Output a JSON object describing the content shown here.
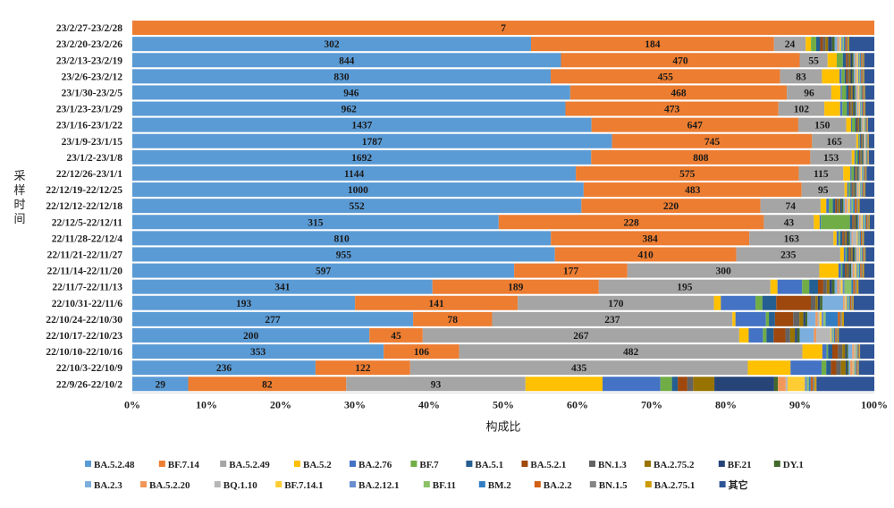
{
  "chart_data": {
    "type": "bar",
    "orientation": "horizontal",
    "stacked": true,
    "normalized": true,
    "title": "",
    "xlabel": "构成比",
    "ylabel": "采样时间",
    "xlim": [
      0,
      100
    ],
    "x_ticks": [
      "0%",
      "10%",
      "20%",
      "30%",
      "40%",
      "50%",
      "60%",
      "70%",
      "80%",
      "90%",
      "100%"
    ],
    "legend_position": "bottom",
    "grid": false,
    "categories": [
      "23/2/27-23/2/28",
      "23/2/20-23/2/26",
      "23/2/13-23/2/19",
      "23/2/6-23/2/12",
      "23/1/30-23/2/5",
      "23/1/23-23/1/29",
      "23/1/16-23/1/22",
      "23/1/9-23/1/15",
      "23/1/2-23/1/8",
      "22/12/26-23/1/1",
      "22/12/19-22/12/25",
      "22/12/12-22/12/18",
      "22/12/5-22/12/11",
      "22/11/28-22/12/4",
      "22/11/21-22/11/27",
      "22/11/14-22/11/20",
      "22/11/7-22/11/13",
      "22/10/31-22/11/6",
      "22/10/24-22/10/30",
      "22/10/17-22/10/23",
      "22/10/10-22/10/16",
      "22/10/3-22/10/9",
      "22/9/26-22/10/2"
    ],
    "series": [
      {
        "name": "BA.5.2.48",
        "color": "#5B9BD5",
        "values": [
          0,
          302,
          844,
          830,
          946,
          962,
          1437,
          1787,
          1692,
          1144,
          1000,
          552,
          315,
          810,
          955,
          597,
          341,
          193,
          277,
          200,
          353,
          236,
          29
        ]
      },
      {
        "name": "BF.7.14",
        "color": "#ED7D31",
        "values": [
          7,
          184,
          470,
          455,
          468,
          473,
          647,
          745,
          808,
          575,
          483,
          220,
          228,
          384,
          410,
          177,
          189,
          141,
          78,
          45,
          106,
          122,
          82
        ]
      },
      {
        "name": "BA.5.2.49",
        "color": "#A5A5A5",
        "values": [
          0,
          24,
          55,
          83,
          96,
          102,
          150,
          165,
          153,
          115,
          95,
          74,
          43,
          163,
          235,
          300,
          195,
          170,
          237,
          267,
          482,
          435,
          93
        ]
      },
      {
        "name": "BA.5.2",
        "color": "#FFC000",
        "values": [
          0,
          4,
          18,
          35,
          20,
          35,
          15,
          8,
          10,
          18,
          6,
          7,
          5,
          6,
          8,
          30,
          8,
          6,
          3,
          8,
          28,
          55,
          40
        ]
      },
      {
        "name": "BA.2.76",
        "color": "#4472C4",
        "values": [
          0,
          0,
          0,
          4,
          3,
          5,
          3,
          3,
          4,
          3,
          3,
          3,
          1,
          4,
          4,
          4,
          28,
          30,
          30,
          12,
          6,
          40,
          30
        ]
      },
      {
        "name": "BF.7",
        "color": "#70AD47",
        "values": [
          0,
          4,
          12,
          6,
          9,
          10,
          10,
          3,
          8,
          6,
          4,
          5,
          25,
          3,
          3,
          2,
          8,
          6,
          3,
          3,
          2,
          6,
          6
        ]
      },
      {
        "name": "BA.5.1",
        "color": "#255E91",
        "values": [
          0,
          3,
          6,
          3,
          5,
          5,
          4,
          3,
          5,
          3,
          3,
          3,
          2,
          4,
          4,
          4,
          10,
          12,
          6,
          6,
          6,
          6,
          3
        ]
      },
      {
        "name": "BA.5.2.1",
        "color": "#9E480E",
        "values": [
          0,
          2,
          3,
          3,
          3,
          3,
          3,
          2,
          3,
          2,
          2,
          2,
          1,
          3,
          3,
          2,
          6,
          30,
          18,
          10,
          8,
          7,
          5
        ]
      },
      {
        "name": "BN.1.3",
        "color": "#636363",
        "values": [
          0,
          2,
          3,
          3,
          3,
          3,
          3,
          2,
          3,
          2,
          2,
          2,
          1,
          3,
          3,
          2,
          4,
          4,
          6,
          4,
          6,
          6,
          3
        ]
      },
      {
        "name": "BA.2.75.2",
        "color": "#997300",
        "values": [
          0,
          2,
          3,
          3,
          3,
          3,
          3,
          2,
          3,
          2,
          2,
          2,
          1,
          3,
          3,
          2,
          3,
          2,
          4,
          4,
          4,
          6,
          11
        ]
      },
      {
        "name": "BF.21",
        "color": "#264478",
        "values": [
          0,
          3,
          3,
          3,
          3,
          3,
          3,
          2,
          3,
          2,
          2,
          2,
          1,
          3,
          3,
          2,
          3,
          2,
          2,
          2,
          2,
          2,
          31
        ]
      },
      {
        "name": "DY.1",
        "color": "#43682B",
        "values": [
          0,
          2,
          3,
          3,
          3,
          3,
          3,
          2,
          3,
          2,
          2,
          2,
          1,
          3,
          3,
          2,
          3,
          2,
          2,
          2,
          2,
          2,
          2
        ]
      },
      {
        "name": "BA.2.3",
        "color": "#7CAFDD",
        "values": [
          0,
          2,
          3,
          3,
          3,
          3,
          3,
          2,
          3,
          2,
          2,
          2,
          1,
          3,
          3,
          2,
          3,
          18,
          8,
          12,
          6,
          2,
          0
        ]
      },
      {
        "name": "BA.5.2.20",
        "color": "#F1975A",
        "values": [
          0,
          1,
          2,
          2,
          2,
          2,
          2,
          2,
          2,
          2,
          2,
          2,
          1,
          2,
          2,
          2,
          2,
          1,
          2,
          2,
          2,
          3,
          4
        ]
      },
      {
        "name": "BQ.1.10",
        "color": "#B7B7B7",
        "values": [
          0,
          1,
          2,
          2,
          2,
          2,
          2,
          2,
          2,
          2,
          2,
          2,
          1,
          8,
          4,
          2,
          2,
          1,
          2,
          12,
          2,
          1,
          1
        ]
      },
      {
        "name": "BF.7.14.1",
        "color": "#FFCD33",
        "values": [
          0,
          1,
          2,
          2,
          2,
          2,
          2,
          2,
          2,
          2,
          2,
          2,
          1,
          2,
          2,
          2,
          2,
          1,
          2,
          1,
          1,
          1,
          9
        ]
      },
      {
        "name": "BA.2.12.1",
        "color": "#698ED0",
        "values": [
          0,
          1,
          2,
          2,
          2,
          2,
          2,
          2,
          2,
          2,
          2,
          2,
          1,
          2,
          2,
          2,
          2,
          1,
          2,
          1,
          1,
          1,
          1
        ]
      },
      {
        "name": "BF.11",
        "color": "#8CC168",
        "values": [
          0,
          1,
          2,
          2,
          2,
          2,
          2,
          2,
          2,
          2,
          2,
          2,
          1,
          2,
          2,
          2,
          8,
          1,
          2,
          1,
          1,
          1,
          1
        ]
      },
      {
        "name": "BM.2",
        "color": "#327DC2",
        "values": [
          0,
          1,
          2,
          2,
          2,
          2,
          2,
          2,
          2,
          2,
          2,
          2,
          1,
          2,
          2,
          2,
          2,
          1,
          12,
          1,
          1,
          1,
          1
        ]
      },
      {
        "name": "BA.2.2",
        "color": "#D26012",
        "values": [
          0,
          1,
          2,
          2,
          2,
          2,
          2,
          2,
          2,
          2,
          2,
          2,
          1,
          2,
          2,
          2,
          2,
          1,
          2,
          1,
          1,
          1,
          1
        ]
      },
      {
        "name": "BN.1.5",
        "color": "#848484",
        "values": [
          0,
          1,
          2,
          2,
          2,
          2,
          2,
          2,
          2,
          2,
          2,
          2,
          1,
          2,
          2,
          2,
          2,
          1,
          2,
          1,
          1,
          1,
          1
        ]
      },
      {
        "name": "BA.2.75.1",
        "color": "#CC9A06",
        "values": [
          0,
          1,
          2,
          2,
          2,
          2,
          2,
          2,
          2,
          2,
          2,
          2,
          1,
          2,
          2,
          2,
          2,
          1,
          2,
          1,
          1,
          1,
          1
        ]
      },
      {
        "name": "其它",
        "color": "#2F5597",
        "values": [
          0,
          19,
          20,
          20,
          20,
          20,
          20,
          20,
          20,
          20,
          20,
          18,
          4,
          20,
          20,
          16,
          18,
          18,
          30,
          30,
          20,
          20,
          30
        ]
      }
    ],
    "labeled_series": [
      "BA.5.2.48",
      "BF.7.14",
      "BA.5.2.49"
    ]
  }
}
